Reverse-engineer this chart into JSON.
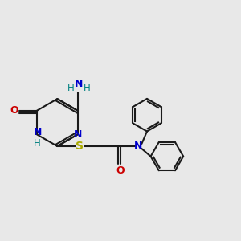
{
  "bg_color": "#e8e8e8",
  "line_color": "#1a1a1a",
  "bond_width": 1.5,
  "N_color": "#0000cc",
  "O_color": "#cc0000",
  "S_color": "#aaaa00",
  "NH_color": "#008080",
  "font_size": 9.0,
  "fig_width": 3.0,
  "fig_height": 3.0,
  "xlim": [
    -0.3,
    5.5
  ],
  "ylim": [
    -2.2,
    2.6
  ]
}
